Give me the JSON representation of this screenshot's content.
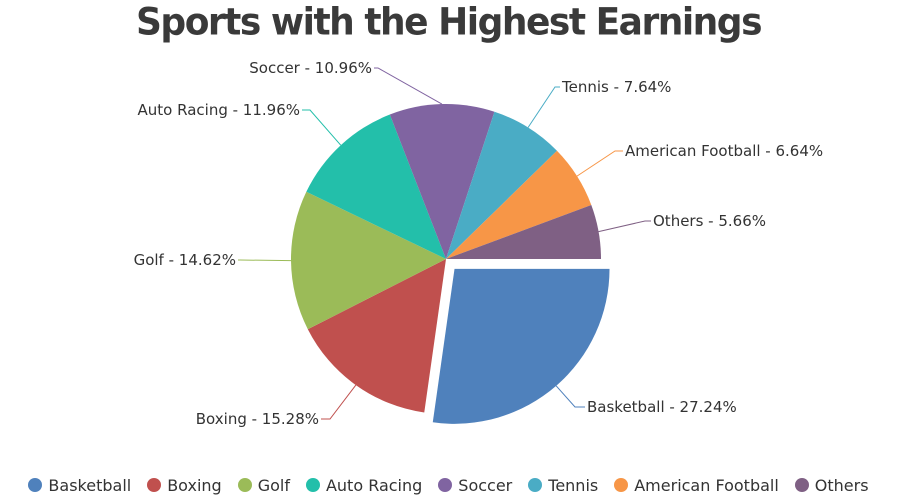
{
  "chart_data": {
    "type": "pie",
    "title": "Sports with the Highest Earnings",
    "slices": [
      {
        "name": "Basketball",
        "value": 27.24,
        "color": "#4F81BC",
        "label": "Basketball - 27.24%",
        "exploded": true
      },
      {
        "name": "Boxing",
        "value": 15.28,
        "color": "#C0504E",
        "label": "Boxing - 15.28%"
      },
      {
        "name": "Golf",
        "value": 14.62,
        "color": "#9BBB58",
        "label": "Golf - 14.62%"
      },
      {
        "name": "Auto Racing",
        "value": 11.96,
        "color": "#23BFAA",
        "label": "Auto Racing - 11.96%"
      },
      {
        "name": "Soccer",
        "value": 10.96,
        "color": "#8064A1",
        "label": "Soccer - 10.96%"
      },
      {
        "name": "Tennis",
        "value": 7.64,
        "color": "#4AACC5",
        "label": "Tennis - 7.64%"
      },
      {
        "name": "American Football",
        "value": 6.64,
        "color": "#F79647",
        "label": "American Football - 6.64%"
      },
      {
        "name": "Others",
        "value": 5.66,
        "color": "#7F6084",
        "label": "Others - 5.66%"
      }
    ],
    "legend_position": "bottom"
  }
}
